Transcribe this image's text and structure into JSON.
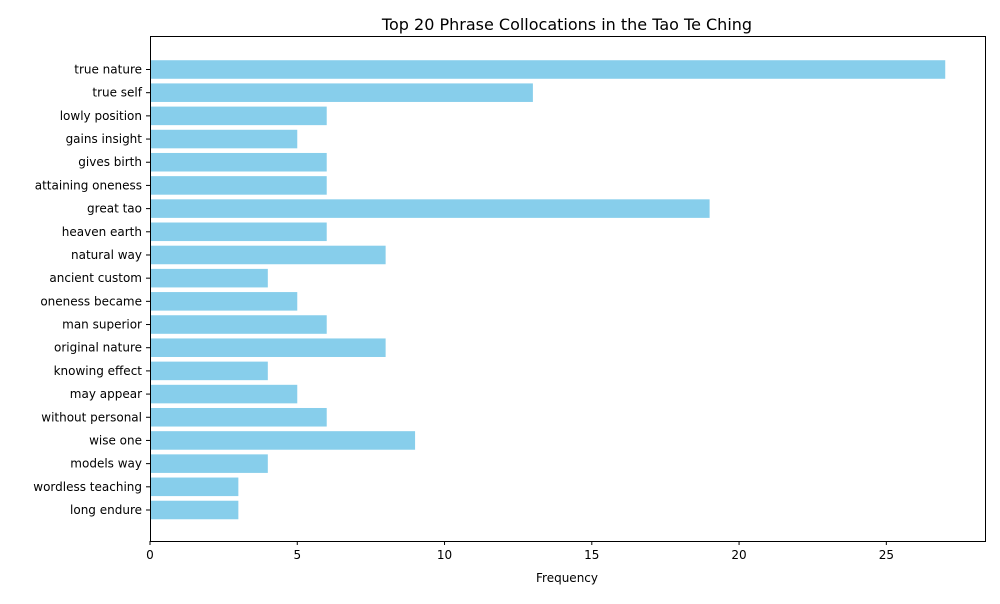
{
  "chart_data": {
    "type": "bar",
    "orientation": "horizontal",
    "title": "Top 20 Phrase Collocations in the Tao Te Ching",
    "xlabel": "Frequency",
    "ylabel": "",
    "xlim": [
      0,
      28.35
    ],
    "xticks": [
      0,
      5,
      10,
      15,
      20,
      25
    ],
    "grid": false,
    "legend": "none",
    "bar_color": "#87ceeb",
    "categories": [
      "true nature",
      "true self",
      "lowly position",
      "gains insight",
      "gives birth",
      "attaining oneness",
      "great tao",
      "heaven earth",
      "natural way",
      "ancient custom",
      "oneness became",
      "man superior",
      "original nature",
      "knowing effect",
      "may appear",
      "without personal",
      "wise one",
      "models way",
      "wordless teaching",
      "long endure"
    ],
    "values": [
      27,
      13,
      6,
      5,
      6,
      6,
      19,
      6,
      8,
      4,
      5,
      6,
      8,
      4,
      5,
      6,
      9,
      4,
      3,
      3
    ]
  }
}
